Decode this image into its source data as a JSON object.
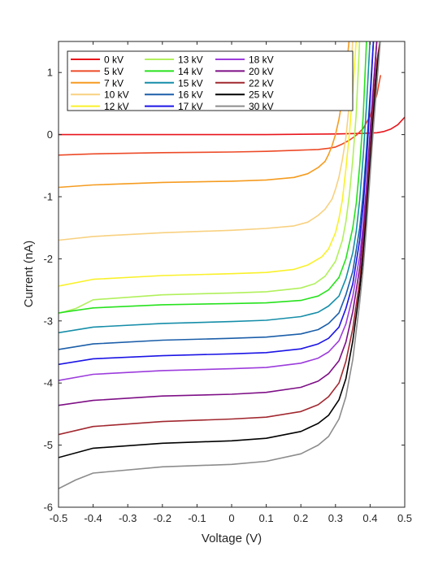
{
  "chart_data": {
    "type": "line",
    "title": "",
    "xlabel": "Voltage (V)",
    "ylabel": "Current (nA)",
    "xlim": [
      -0.5,
      0.5
    ],
    "ylim": [
      -6,
      1.5
    ],
    "xticks": [
      -0.5,
      -0.4,
      -0.3,
      -0.2,
      -0.1,
      0,
      0.1,
      0.2,
      0.3,
      0.4,
      0.5
    ],
    "xtick_labels": [
      "-0.5",
      "-0.4",
      "-0.3",
      "-0.2",
      "-0.1",
      "0",
      "0.1",
      "0.2",
      "0.3",
      "0.4",
      "0.5"
    ],
    "yticks": [
      -6,
      -5,
      -4,
      -3,
      -2,
      -1,
      0,
      1
    ],
    "ytick_labels": [
      "-6",
      "-5",
      "-4",
      "-3",
      "-2",
      "-1",
      "0",
      "1"
    ],
    "grid": false,
    "legend_position": "top-inside",
    "series": [
      {
        "name": "0 kV",
        "color": "#e8161c",
        "x": [
          -0.5,
          -0.3,
          -0.1,
          0.1,
          0.3,
          0.38,
          0.42,
          0.44,
          0.46,
          0.48,
          0.5
        ],
        "y": [
          0.0,
          0.0,
          0.0,
          0.0,
          0.01,
          0.02,
          0.03,
          0.05,
          0.09,
          0.16,
          0.28
        ]
      },
      {
        "name": "5 kV",
        "color": "#ec4a27",
        "x": [
          -0.5,
          -0.4,
          -0.2,
          0.0,
          0.1,
          0.2,
          0.25,
          0.28,
          0.3,
          0.32,
          0.34,
          0.36,
          0.38,
          0.4,
          0.42,
          0.43
        ],
        "y": [
          -0.33,
          -0.31,
          -0.29,
          -0.28,
          -0.27,
          -0.25,
          -0.24,
          -0.22,
          -0.2,
          -0.15,
          -0.09,
          -0.01,
          0.1,
          0.3,
          0.65,
          0.95
        ]
      },
      {
        "name": "7 kV",
        "color": "#f59c20",
        "x": [
          -0.5,
          -0.4,
          -0.2,
          0.0,
          0.1,
          0.18,
          0.22,
          0.25,
          0.27,
          0.28,
          0.29,
          0.3,
          0.31,
          0.32,
          0.33,
          0.34
        ],
        "y": [
          -0.85,
          -0.81,
          -0.77,
          -0.75,
          -0.73,
          -0.69,
          -0.63,
          -0.53,
          -0.43,
          -0.32,
          -0.18,
          0.0,
          0.25,
          0.58,
          1.0,
          1.55
        ]
      },
      {
        "name": "10 kV",
        "color": "#f8d181",
        "x": [
          -0.5,
          -0.4,
          -0.2,
          0.0,
          0.1,
          0.18,
          0.22,
          0.25,
          0.27,
          0.29,
          0.3,
          0.31,
          0.32,
          0.33,
          0.34,
          0.35
        ],
        "y": [
          -1.7,
          -1.64,
          -1.58,
          -1.54,
          -1.51,
          -1.47,
          -1.41,
          -1.3,
          -1.2,
          -1.04,
          -0.88,
          -0.68,
          -0.4,
          -0.05,
          0.5,
          1.55
        ]
      },
      {
        "name": "12 kV",
        "color": "#f9f12a",
        "x": [
          -0.5,
          -0.4,
          -0.2,
          0.0,
          0.1,
          0.18,
          0.22,
          0.26,
          0.28,
          0.3,
          0.31,
          0.32,
          0.33,
          0.34,
          0.35,
          0.36
        ],
        "y": [
          -2.44,
          -2.33,
          -2.27,
          -2.24,
          -2.22,
          -2.17,
          -2.1,
          -1.97,
          -1.84,
          -1.58,
          -1.35,
          -1.05,
          -0.55,
          0.0,
          0.7,
          1.55
        ]
      },
      {
        "name": "13 kV",
        "color": "#b1f05c",
        "x": [
          -0.5,
          -0.45,
          -0.4,
          -0.2,
          0.0,
          0.1,
          0.2,
          0.24,
          0.27,
          0.3,
          0.32,
          0.33,
          0.34,
          0.35,
          0.36,
          0.37
        ],
        "y": [
          -2.88,
          -2.8,
          -2.66,
          -2.58,
          -2.55,
          -2.53,
          -2.47,
          -2.4,
          -2.28,
          -2.04,
          -1.7,
          -1.4,
          -0.98,
          -0.4,
          0.35,
          1.55
        ]
      },
      {
        "name": "14 kV",
        "color": "#27e21d",
        "x": [
          -0.5,
          -0.4,
          -0.2,
          0.0,
          0.1,
          0.2,
          0.25,
          0.28,
          0.31,
          0.33,
          0.35,
          0.36,
          0.37,
          0.38,
          0.39
        ],
        "y": [
          -2.87,
          -2.79,
          -2.74,
          -2.72,
          -2.71,
          -2.67,
          -2.6,
          -2.5,
          -2.3,
          -2.0,
          -1.5,
          -1.1,
          -0.5,
          0.3,
          1.55
        ]
      },
      {
        "name": "15 kV",
        "color": "#168ea9",
        "x": [
          -0.5,
          -0.4,
          -0.2,
          0.0,
          0.1,
          0.2,
          0.25,
          0.28,
          0.31,
          0.33,
          0.35,
          0.36,
          0.37,
          0.38,
          0.39,
          0.4
        ],
        "y": [
          -3.19,
          -3.1,
          -3.04,
          -3.01,
          -2.99,
          -2.93,
          -2.86,
          -2.76,
          -2.6,
          -2.32,
          -1.9,
          -1.55,
          -1.05,
          -0.35,
          0.5,
          1.55
        ]
      },
      {
        "name": "16 kV",
        "color": "#1b5ea9",
        "x": [
          -0.5,
          -0.4,
          -0.2,
          0.0,
          0.1,
          0.2,
          0.25,
          0.28,
          0.31,
          0.33,
          0.35,
          0.37,
          0.38,
          0.39,
          0.4,
          0.41
        ],
        "y": [
          -3.46,
          -3.37,
          -3.31,
          -3.28,
          -3.26,
          -3.21,
          -3.14,
          -3.04,
          -2.87,
          -2.58,
          -2.2,
          -1.5,
          -0.95,
          -0.2,
          0.65,
          1.55
        ]
      },
      {
        "name": "17 kV",
        "color": "#1b14e5",
        "x": [
          -0.5,
          -0.4,
          -0.2,
          0.0,
          0.1,
          0.2,
          0.25,
          0.28,
          0.31,
          0.33,
          0.35,
          0.37,
          0.38,
          0.39,
          0.4,
          0.41
        ],
        "y": [
          -3.7,
          -3.61,
          -3.56,
          -3.53,
          -3.51,
          -3.45,
          -3.37,
          -3.28,
          -3.1,
          -2.8,
          -2.4,
          -1.7,
          -1.15,
          -0.4,
          0.55,
          1.55
        ]
      },
      {
        "name": "18 kV",
        "color": "#9c3cdc",
        "x": [
          -0.5,
          -0.4,
          -0.2,
          0.0,
          0.1,
          0.2,
          0.25,
          0.28,
          0.31,
          0.33,
          0.35,
          0.37,
          0.38,
          0.39,
          0.4,
          0.41,
          0.42
        ],
        "y": [
          -3.96,
          -3.86,
          -3.8,
          -3.77,
          -3.75,
          -3.68,
          -3.6,
          -3.5,
          -3.32,
          -3.05,
          -2.6,
          -1.95,
          -1.45,
          -0.8,
          0.05,
          0.85,
          1.55
        ]
      },
      {
        "name": "20 kV",
        "color": "#7e0f86",
        "x": [
          -0.5,
          -0.4,
          -0.2,
          0.0,
          0.1,
          0.2,
          0.25,
          0.28,
          0.31,
          0.33,
          0.35,
          0.37,
          0.38,
          0.39,
          0.4,
          0.41,
          0.42
        ],
        "y": [
          -4.36,
          -4.28,
          -4.21,
          -4.18,
          -4.15,
          -4.07,
          -3.97,
          -3.85,
          -3.64,
          -3.34,
          -2.85,
          -2.15,
          -1.6,
          -0.9,
          0.0,
          0.8,
          1.55
        ]
      },
      {
        "name": "22 kV",
        "color": "#a1282f",
        "x": [
          -0.5,
          -0.4,
          -0.2,
          0.0,
          0.1,
          0.2,
          0.25,
          0.28,
          0.31,
          0.33,
          0.35,
          0.37,
          0.38,
          0.39,
          0.4,
          0.41,
          0.42,
          0.43
        ],
        "y": [
          -4.83,
          -4.7,
          -4.62,
          -4.58,
          -4.55,
          -4.46,
          -4.35,
          -4.22,
          -4.0,
          -3.65,
          -3.12,
          -2.35,
          -1.8,
          -1.1,
          -0.3,
          0.55,
          1.2,
          1.55
        ]
      },
      {
        "name": "25 kV",
        "color": "#000000",
        "x": [
          -0.5,
          -0.4,
          -0.2,
          0.0,
          0.1,
          0.2,
          0.25,
          0.28,
          0.31,
          0.33,
          0.35,
          0.37,
          0.38,
          0.39,
          0.4,
          0.41,
          0.42,
          0.43
        ],
        "y": [
          -5.2,
          -5.05,
          -4.97,
          -4.93,
          -4.89,
          -4.78,
          -4.65,
          -4.52,
          -4.27,
          -3.93,
          -3.32,
          -2.5,
          -1.95,
          -1.25,
          -0.45,
          0.35,
          1.05,
          1.55
        ]
      },
      {
        "name": "30 kV",
        "color": "#8c8c8c",
        "x": [
          -0.5,
          -0.45,
          -0.4,
          -0.2,
          0.0,
          0.1,
          0.2,
          0.25,
          0.28,
          0.31,
          0.33,
          0.35,
          0.37,
          0.38,
          0.39,
          0.4,
          0.41,
          0.42,
          0.43
        ],
        "y": [
          -5.7,
          -5.56,
          -5.45,
          -5.35,
          -5.31,
          -5.26,
          -5.14,
          -5.0,
          -4.86,
          -4.58,
          -4.22,
          -3.62,
          -2.7,
          -2.15,
          -1.45,
          -0.65,
          0.15,
          0.85,
          1.55
        ]
      }
    ]
  }
}
